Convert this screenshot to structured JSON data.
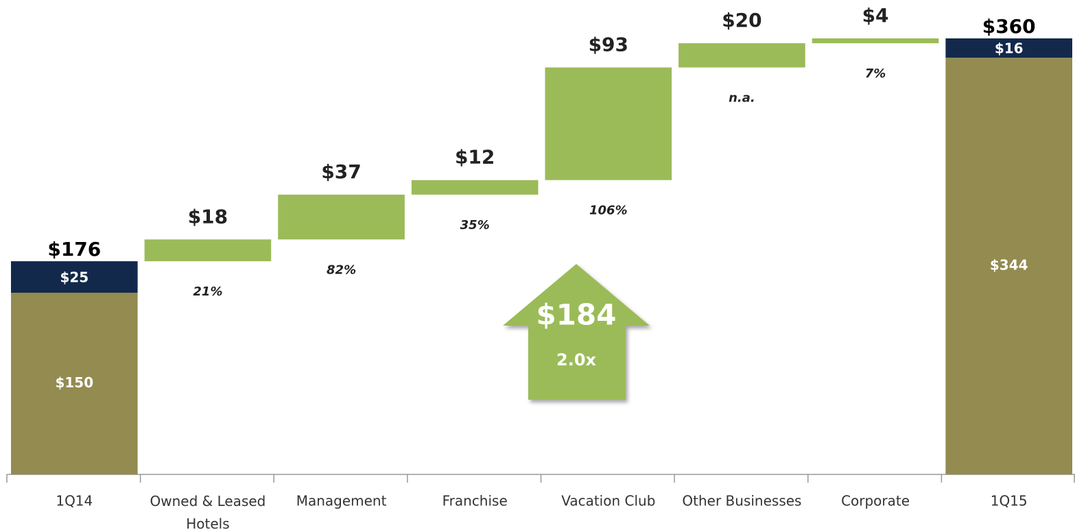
{
  "chart_data": {
    "type": "waterfall",
    "categories": [
      "1Q14",
      "Owned & Leased Hotels",
      "Management",
      "Franchise",
      "Vacation Club",
      "Other Businesses",
      "Corporate",
      "1Q15"
    ],
    "series": [
      {
        "color": "#938b50",
        "values": [
          150,
          null,
          null,
          null,
          null,
          null,
          null,
          344
        ],
        "value_labels": [
          "$150",
          null,
          null,
          null,
          null,
          null,
          null,
          "$344"
        ]
      },
      {
        "color": "#13294b",
        "values": [
          25,
          null,
          null,
          null,
          null,
          null,
          null,
          16
        ],
        "value_labels": [
          "$25",
          null,
          null,
          null,
          null,
          null,
          null,
          "$16"
        ]
      },
      {
        "color": "#9bbb59",
        "values": [
          null,
          18,
          37,
          12,
          93,
          20,
          4,
          null
        ],
        "value_labels": [
          null,
          "$18",
          "$37",
          "$12",
          "$93",
          "$20",
          "$4",
          null
        ]
      }
    ],
    "totals": [
      176,
      null,
      null,
      null,
      null,
      null,
      null,
      360
    ],
    "total_labels": [
      "$176",
      null,
      null,
      null,
      null,
      null,
      null,
      "$360"
    ],
    "growth_labels": [
      null,
      "21%",
      "82%",
      "35%",
      "106%",
      "n.a.",
      "7%",
      null
    ],
    "annotation": {
      "value_label": "$184",
      "multiple": "2.0x",
      "color": "#9bbb59"
    }
  }
}
